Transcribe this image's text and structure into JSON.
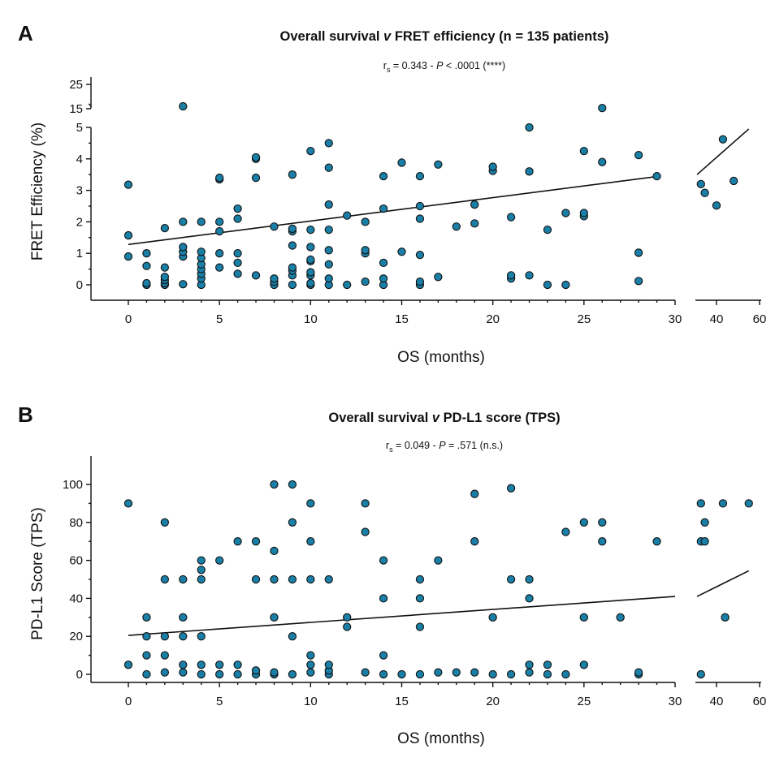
{
  "chart_data": [
    {
      "type": "scatter",
      "panel": "A",
      "title": "Overall survival v FRET efficiency (n = 135 patients)",
      "title_parts": [
        "Overall survival ",
        "v",
        " FRET efficiency (n = 135 patients)"
      ],
      "subtitle_parts": [
        "r",
        "s",
        " = 0.343 - ",
        "P",
        " < .0001 (****)"
      ],
      "xlabel": "OS (months)",
      "ylabel": "FRET Efficiency (%)",
      "x_ticks_main": [
        "0",
        "5",
        "10",
        "15",
        "20",
        "25",
        "30"
      ],
      "x_ticks_break": [
        "40",
        "60"
      ],
      "y_ticks_main": [
        "0",
        "1",
        "2",
        "3",
        "4",
        "5"
      ],
      "y_ticks_break": [
        "15",
        "25"
      ],
      "xlim_main": [
        0,
        30
      ],
      "xlim_break": [
        35,
        60
      ],
      "ylim_main": [
        0,
        5
      ],
      "ylim_break": [
        15,
        25
      ],
      "grid": false,
      "point_color": "#1a7fa6",
      "fit_main": [
        [
          0,
          1.28
        ],
        [
          29,
          3.44
        ]
      ],
      "fit_break": [
        [
          35,
          3.5
        ],
        [
          55,
          4.95
        ]
      ],
      "points": [
        [
          0,
          0.9
        ],
        [
          0,
          1.57
        ],
        [
          0,
          3.18
        ],
        [
          1,
          0.0
        ],
        [
          1,
          0.05
        ],
        [
          1,
          0.6
        ],
        [
          1,
          1.0
        ],
        [
          2,
          0.0
        ],
        [
          2,
          0.05
        ],
        [
          2,
          0.15
        ],
        [
          2,
          0.25
        ],
        [
          2,
          0.55
        ],
        [
          2,
          1.8
        ],
        [
          3,
          0.02
        ],
        [
          3,
          0.9
        ],
        [
          3,
          1.05
        ],
        [
          3,
          1.2
        ],
        [
          3,
          2.0
        ],
        [
          3,
          16
        ],
        [
          4,
          0.0
        ],
        [
          4,
          0.2
        ],
        [
          4,
          0.35
        ],
        [
          4,
          0.5
        ],
        [
          4,
          0.65
        ],
        [
          4,
          0.85
        ],
        [
          4,
          1.05
        ],
        [
          4,
          2.0
        ],
        [
          5,
          0.55
        ],
        [
          5,
          1.0
        ],
        [
          5,
          1.7
        ],
        [
          5,
          2.0
        ],
        [
          5,
          3.35
        ],
        [
          5,
          3.4
        ],
        [
          6,
          0.35
        ],
        [
          6,
          0.7
        ],
        [
          6,
          1.0
        ],
        [
          6,
          2.1
        ],
        [
          6,
          2.42
        ],
        [
          7,
          0.3
        ],
        [
          7,
          3.4
        ],
        [
          7,
          4.0
        ],
        [
          7,
          4.05
        ],
        [
          8,
          0.0
        ],
        [
          8,
          0.1
        ],
        [
          8,
          0.2
        ],
        [
          8,
          1.85
        ],
        [
          9,
          0.0
        ],
        [
          9,
          0.3
        ],
        [
          9,
          0.45
        ],
        [
          9,
          0.55
        ],
        [
          9,
          1.25
        ],
        [
          9,
          1.7
        ],
        [
          9,
          1.78
        ],
        [
          9,
          3.5
        ],
        [
          10,
          0.0
        ],
        [
          10,
          0.05
        ],
        [
          10,
          0.3
        ],
        [
          10,
          0.4
        ],
        [
          10,
          0.75
        ],
        [
          10,
          0.8
        ],
        [
          10,
          1.2
        ],
        [
          10,
          1.75
        ],
        [
          10,
          4.25
        ],
        [
          11,
          0.0
        ],
        [
          11,
          0.2
        ],
        [
          11,
          0.65
        ],
        [
          11,
          1.1
        ],
        [
          11,
          1.75
        ],
        [
          11,
          2.55
        ],
        [
          11,
          3.72
        ],
        [
          11,
          4.5
        ],
        [
          12,
          0.0
        ],
        [
          12,
          2.2
        ],
        [
          13,
          0.1
        ],
        [
          13,
          1.0
        ],
        [
          13,
          1.1
        ],
        [
          13,
          2.0
        ],
        [
          14,
          0.0
        ],
        [
          14,
          0.2
        ],
        [
          14,
          0.7
        ],
        [
          14,
          2.42
        ],
        [
          14,
          3.45
        ],
        [
          15,
          1.05
        ],
        [
          15,
          3.88
        ],
        [
          16,
          0.0
        ],
        [
          16,
          0.1
        ],
        [
          16,
          0.95
        ],
        [
          16,
          2.1
        ],
        [
          16,
          2.5
        ],
        [
          16,
          3.45
        ],
        [
          17,
          0.25
        ],
        [
          17,
          3.82
        ],
        [
          18,
          1.85
        ],
        [
          19,
          1.95
        ],
        [
          19,
          2.55
        ],
        [
          20,
          3.62
        ],
        [
          20,
          3.75
        ],
        [
          21,
          0.2
        ],
        [
          21,
          0.3
        ],
        [
          21,
          2.15
        ],
        [
          22,
          0.3
        ],
        [
          22,
          3.6
        ],
        [
          22,
          5.0
        ],
        [
          23,
          0.0
        ],
        [
          23,
          1.75
        ],
        [
          24,
          0.0
        ],
        [
          24,
          2.28
        ],
        [
          25,
          2.18
        ],
        [
          25,
          2.28
        ],
        [
          25,
          4.25
        ],
        [
          26,
          3.9
        ],
        [
          26,
          15.3
        ],
        [
          28,
          0.12
        ],
        [
          28,
          1.02
        ],
        [
          28,
          4.12
        ],
        [
          29,
          3.45
        ],
        [
          36,
          3.2
        ],
        [
          37,
          2.92
        ],
        [
          40,
          2.52
        ],
        [
          43,
          4.62
        ],
        [
          48,
          3.3
        ]
      ]
    },
    {
      "type": "scatter",
      "panel": "B",
      "title": "Overall survival v PD-L1 score (TPS)",
      "title_parts": [
        "Overall survival ",
        "v",
        " PD-L1 score (TPS)"
      ],
      "subtitle_parts": [
        "r",
        "s",
        " = 0.049 - ",
        "P",
        " = .571 (n.s.)"
      ],
      "xlabel": "OS (months)",
      "ylabel": "PD-L1 Score (TPS)",
      "x_ticks_main": [
        "0",
        "5",
        "10",
        "15",
        "20",
        "25",
        "30"
      ],
      "x_ticks_break": [
        "40",
        "60"
      ],
      "y_ticks": [
        "0",
        "20",
        "40",
        "60",
        "80",
        "100"
      ],
      "xlim_main": [
        0,
        30
      ],
      "xlim_break": [
        35,
        60
      ],
      "ylim": [
        0,
        100
      ],
      "grid": false,
      "point_color": "#1a7fa6",
      "fit_main": [
        [
          0,
          20.5
        ],
        [
          30,
          41
        ]
      ],
      "fit_break": [
        [
          35,
          41
        ],
        [
          55,
          54.5
        ]
      ],
      "points": [
        [
          0,
          5
        ],
        [
          0,
          90
        ],
        [
          1,
          0
        ],
        [
          1,
          10
        ],
        [
          1,
          20
        ],
        [
          1,
          30
        ],
        [
          2,
          1
        ],
        [
          2,
          10
        ],
        [
          2,
          20
        ],
        [
          2,
          50
        ],
        [
          2,
          80
        ],
        [
          3,
          1
        ],
        [
          3,
          5
        ],
        [
          3,
          20
        ],
        [
          3,
          30
        ],
        [
          3,
          50
        ],
        [
          4,
          0
        ],
        [
          4,
          5
        ],
        [
          4,
          20
        ],
        [
          4,
          50
        ],
        [
          4,
          55
        ],
        [
          4,
          60
        ],
        [
          5,
          0
        ],
        [
          5,
          5
        ],
        [
          5,
          60
        ],
        [
          6,
          0
        ],
        [
          6,
          5
        ],
        [
          6,
          70
        ],
        [
          7,
          0
        ],
        [
          7,
          2
        ],
        [
          7,
          50
        ],
        [
          7,
          70
        ],
        [
          8,
          0
        ],
        [
          8,
          1
        ],
        [
          8,
          30
        ],
        [
          8,
          50
        ],
        [
          8,
          65
        ],
        [
          8,
          100
        ],
        [
          9,
          0
        ],
        [
          9,
          20
        ],
        [
          9,
          50
        ],
        [
          9,
          80
        ],
        [
          9,
          100
        ],
        [
          10,
          1
        ],
        [
          10,
          5
        ],
        [
          10,
          10
        ],
        [
          10,
          50
        ],
        [
          10,
          70
        ],
        [
          10,
          90
        ],
        [
          11,
          0
        ],
        [
          11,
          2
        ],
        [
          11,
          5
        ],
        [
          11,
          50
        ],
        [
          12,
          25
        ],
        [
          12,
          30
        ],
        [
          13,
          1
        ],
        [
          13,
          75
        ],
        [
          13,
          90
        ],
        [
          14,
          0
        ],
        [
          14,
          10
        ],
        [
          14,
          40
        ],
        [
          14,
          60
        ],
        [
          15,
          0
        ],
        [
          16,
          0
        ],
        [
          16,
          25
        ],
        [
          16,
          40
        ],
        [
          16,
          50
        ],
        [
          17,
          1
        ],
        [
          17,
          60
        ],
        [
          18,
          1
        ],
        [
          19,
          1
        ],
        [
          19,
          70
        ],
        [
          19,
          95
        ],
        [
          20,
          0
        ],
        [
          20,
          30
        ],
        [
          21,
          0
        ],
        [
          21,
          50
        ],
        [
          21,
          98
        ],
        [
          22,
          1
        ],
        [
          22,
          5
        ],
        [
          22,
          40
        ],
        [
          22,
          50
        ],
        [
          23,
          0
        ],
        [
          23,
          5
        ],
        [
          24,
          0
        ],
        [
          24,
          75
        ],
        [
          25,
          5
        ],
        [
          25,
          30
        ],
        [
          25,
          80
        ],
        [
          26,
          70
        ],
        [
          26,
          80
        ],
        [
          27,
          30
        ],
        [
          28,
          0
        ],
        [
          28,
          1
        ],
        [
          29,
          70
        ],
        [
          36,
          0
        ],
        [
          36,
          70
        ],
        [
          36,
          90
        ],
        [
          37,
          70
        ],
        [
          37,
          80
        ],
        [
          43,
          90
        ],
        [
          44,
          30
        ],
        [
          55,
          90
        ]
      ]
    }
  ]
}
